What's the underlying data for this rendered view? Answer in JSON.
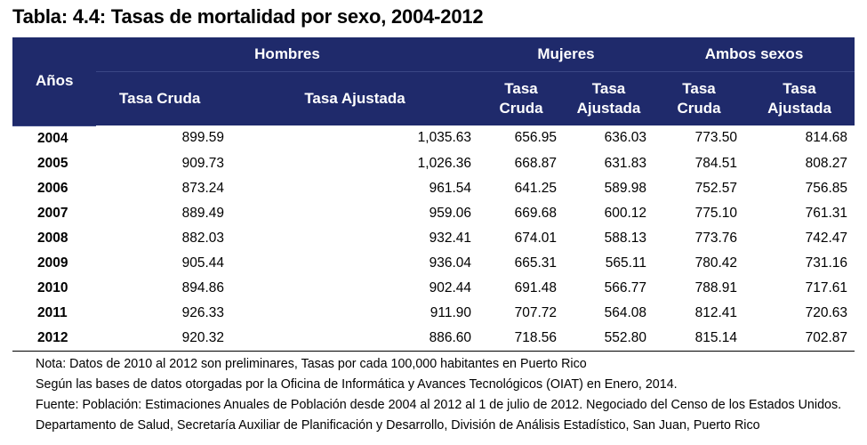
{
  "title": "Tabla: 4.4: Tasas de mortalidad por sexo, 2004-2012",
  "header": {
    "years": "Años",
    "groups": [
      "Hombres",
      "Mujeres",
      "Ambos sexos"
    ],
    "hombres_sub": [
      "Tasa Cruda",
      "Tasa Ajustada"
    ],
    "mujeres_sub": [
      [
        "Tasa",
        "Cruda"
      ],
      [
        "Tasa",
        "Ajustada"
      ]
    ],
    "ambos_sub": [
      [
        "Tasa",
        "Cruda"
      ],
      [
        "Tasa",
        "Ajustada"
      ]
    ]
  },
  "rows": [
    {
      "year": "2004",
      "h_cruda": "899.59",
      "h_ajustada": "1,035.63",
      "m_cruda": "656.95",
      "m_ajustada": "636.03",
      "a_cruda": "773.50",
      "a_ajustada": "814.68"
    },
    {
      "year": "2005",
      "h_cruda": "909.73",
      "h_ajustada": "1,026.36",
      "m_cruda": "668.87",
      "m_ajustada": "631.83",
      "a_cruda": "784.51",
      "a_ajustada": "808.27"
    },
    {
      "year": "2006",
      "h_cruda": "873.24",
      "h_ajustada": "961.54",
      "m_cruda": "641.25",
      "m_ajustada": "589.98",
      "a_cruda": "752.57",
      "a_ajustada": "756.85"
    },
    {
      "year": "2007",
      "h_cruda": "889.49",
      "h_ajustada": "959.06",
      "m_cruda": "669.68",
      "m_ajustada": "600.12",
      "a_cruda": "775.10",
      "a_ajustada": "761.31"
    },
    {
      "year": "2008",
      "h_cruda": "882.03",
      "h_ajustada": "932.41",
      "m_cruda": "674.01",
      "m_ajustada": "588.13",
      "a_cruda": "773.76",
      "a_ajustada": "742.47"
    },
    {
      "year": "2009",
      "h_cruda": "905.44",
      "h_ajustada": "936.04",
      "m_cruda": "665.31",
      "m_ajustada": "565.11",
      "a_cruda": "780.42",
      "a_ajustada": "731.16"
    },
    {
      "year": "2010",
      "h_cruda": "894.86",
      "h_ajustada": "902.44",
      "m_cruda": "691.48",
      "m_ajustada": "566.77",
      "a_cruda": "788.91",
      "a_ajustada": "717.61"
    },
    {
      "year": "2011",
      "h_cruda": "926.33",
      "h_ajustada": "911.90",
      "m_cruda": "707.72",
      "m_ajustada": "564.08",
      "a_cruda": "812.41",
      "a_ajustada": "720.63"
    },
    {
      "year": "2012",
      "h_cruda": "920.32",
      "h_ajustada": "886.60",
      "m_cruda": "718.56",
      "m_ajustada": "552.80",
      "a_cruda": "815.14",
      "a_ajustada": "702.87"
    }
  ],
  "notes": [
    "Nota: Datos de 2010 al 2012 son preliminares, Tasas por cada 100,000 habitantes en Puerto Rico",
    "Según las bases de datos otorgadas por la Oficina de Informática y Avances Tecnológicos (OIAT) en Enero, 2014.",
    "Fuente: Población: Estimaciones Anuales de Población desde 2004 al 2012 al 1 de julio de 2012. Negociado del Censo de los Estados Unidos.",
    "Departamento de Salud, Secretaría Auxiliar de Planificación y Desarrollo, División de Análisis Estadístico, San Juan, Puerto Rico"
  ]
}
